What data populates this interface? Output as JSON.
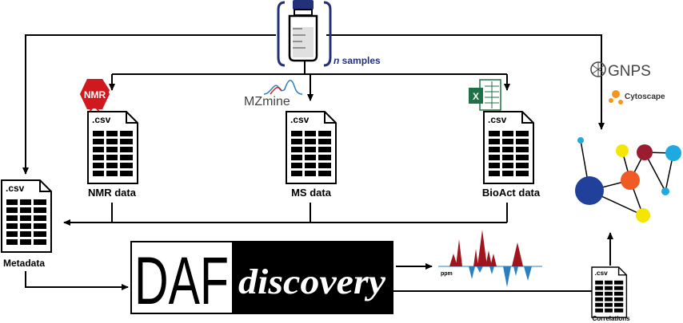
{
  "samples": {
    "italic": "n",
    "label": " samples"
  },
  "tools": {
    "nmr": "NMR",
    "mzmine": "MZmine",
    "gnps": "GNPS",
    "cytoscape": "Cytoscape",
    "excel": "X"
  },
  "files": {
    "csv": ".csv",
    "nmr_label": "NMR data",
    "ms_label": "MS data",
    "bioact_label": "BioAct data",
    "metadata_label": "Metadata",
    "correlations_label": "Correlations"
  },
  "logo": {
    "left": "DAF",
    "right": "discovery"
  },
  "spectrum": {
    "axis_label": "ppm"
  },
  "colors": {
    "spectrum_up": "#a0141e",
    "spectrum_down": "#2a7fc1",
    "vial_bracket": "#23307a",
    "samples_text": "#23307a",
    "nmr_badge": "#d0191f",
    "excel_green": "#1e7145",
    "node_blue": "#20409a",
    "node_orange": "#f05a24",
    "node_darkred": "#9b1b30",
    "node_yellow": "#f4e600",
    "node_cyan": "#1fa9e1"
  }
}
